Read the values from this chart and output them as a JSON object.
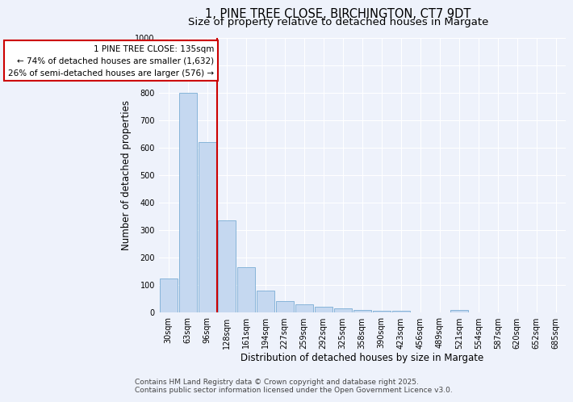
{
  "title_line1": "1, PINE TREE CLOSE, BIRCHINGTON, CT7 9DT",
  "title_line2": "Size of property relative to detached houses in Margate",
  "xlabel": "Distribution of detached houses by size in Margate",
  "ylabel": "Number of detached properties",
  "footnote_line1": "Contains HM Land Registry data © Crown copyright and database right 2025.",
  "footnote_line2": "Contains public sector information licensed under the Open Government Licence v3.0.",
  "categories": [
    "30sqm",
    "63sqm",
    "96sqm",
    "128sqm",
    "161sqm",
    "194sqm",
    "227sqm",
    "259sqm",
    "292sqm",
    "325sqm",
    "358sqm",
    "390sqm",
    "423sqm",
    "456sqm",
    "489sqm",
    "521sqm",
    "554sqm",
    "587sqm",
    "620sqm",
    "652sqm",
    "685sqm"
  ],
  "values": [
    125,
    800,
    620,
    335,
    165,
    80,
    40,
    28,
    22,
    15,
    8,
    5,
    5,
    0,
    0,
    8,
    0,
    0,
    0,
    0,
    0
  ],
  "bar_color": "#c5d8f0",
  "bar_edge_color": "#7aadd4",
  "ref_line_bar_index": 3,
  "ref_line_color": "#cc0000",
  "annotation_line1": "1 PINE TREE CLOSE: 135sqm",
  "annotation_line2": "← 74% of detached houses are smaller (1,632)",
  "annotation_line3": "26% of semi-detached houses are larger (576) →",
  "annotation_box_color": "#cc0000",
  "ylim": [
    0,
    1000
  ],
  "yticks": [
    0,
    100,
    200,
    300,
    400,
    500,
    600,
    700,
    800,
    900,
    1000
  ],
  "background_color": "#eef2fb",
  "grid_color": "#ffffff",
  "title_fontsize": 10.5,
  "subtitle_fontsize": 9.5,
  "ylabel_fontsize": 8.5,
  "xlabel_fontsize": 8.5,
  "tick_fontsize": 7,
  "annotation_fontsize": 7.5,
  "footnote_fontsize": 6.5
}
